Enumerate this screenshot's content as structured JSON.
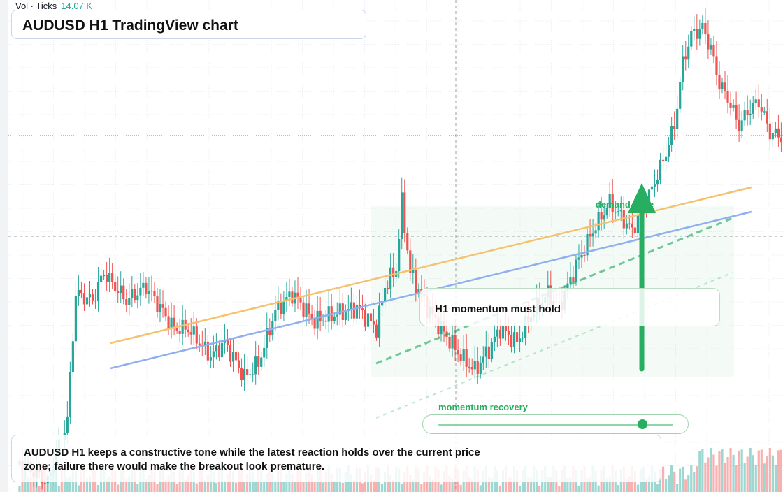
{
  "volume_label": {
    "prefix": "Vol · Ticks",
    "value": "14.07 K"
  },
  "chart_title": "AUDUSD H1 TradingView chart",
  "callout_text": "H1 momentum must hold",
  "zone_label": "demand zone",
  "momentum": {
    "label": "momentum recovery",
    "level": 0.87
  },
  "summary_text": "AUDUSD H1 keeps a constructive tone while the latest reaction holds over the current price zone; failure there would make the breakout look premature.",
  "colors": {
    "up": "#26a69a",
    "down": "#ef5350",
    "accent": "#27ae60",
    "trend_orange": "#f5c26b",
    "trend_blue": "#8fb0ee"
  }
}
